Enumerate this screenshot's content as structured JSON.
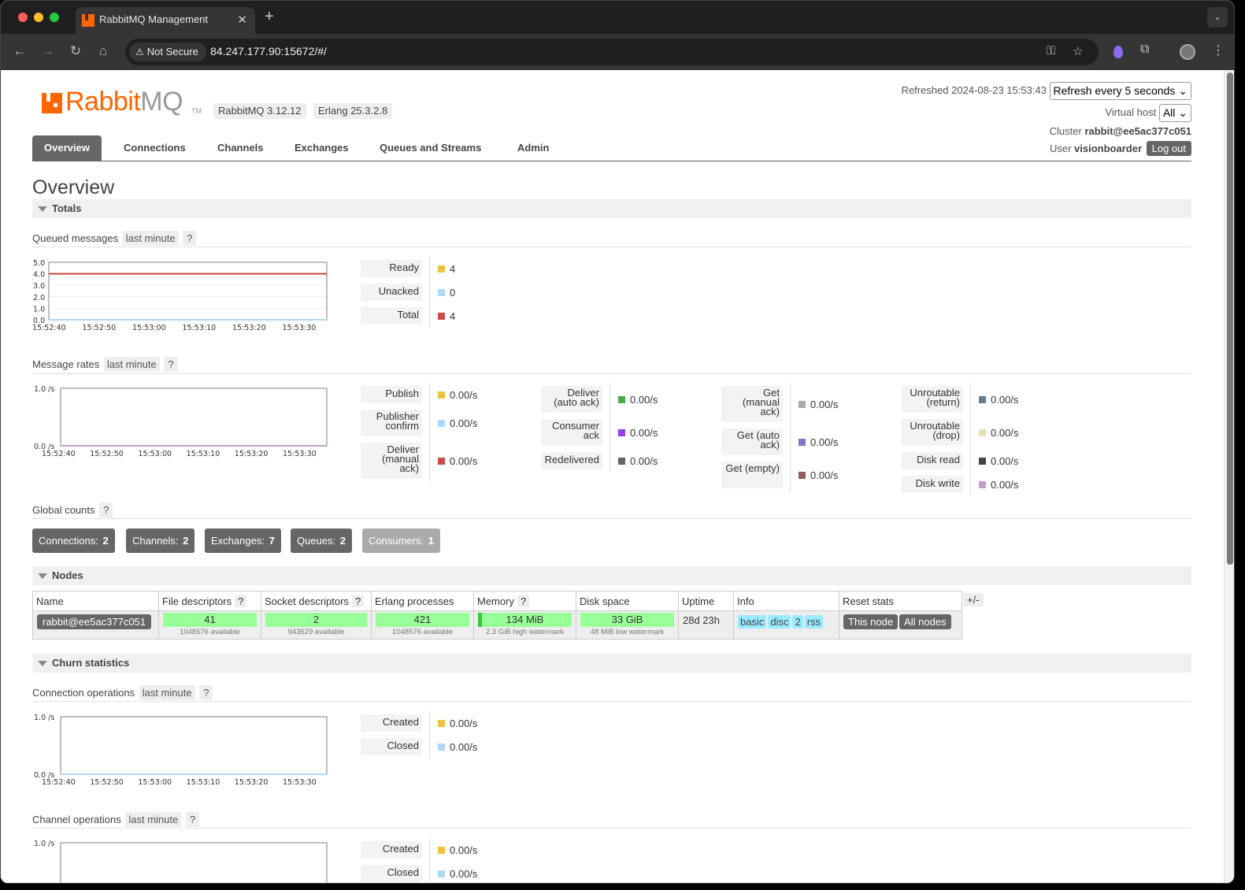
{
  "browser": {
    "tab_title": "RabbitMQ Management",
    "not_secure": "Not Secure",
    "url": "84.247.177.90:15672/#/"
  },
  "header": {
    "logo_rabbit": "Rabbit",
    "logo_mq": "MQ",
    "logo_tm": "TM",
    "rabbitmq_version": "RabbitMQ 3.12.12",
    "erlang_version": "Erlang 25.3.2.8",
    "refreshed_label": "Refreshed",
    "refreshed_time": "2024-08-23 15:53:43",
    "refresh_select": "Refresh every 5 seconds",
    "vhost_label": "Virtual host",
    "vhost_select": "All",
    "cluster_label": "Cluster",
    "cluster_name": "rabbit@ee5ac377c051",
    "user_label": "User",
    "user_name": "visionboarder",
    "logout": "Log out"
  },
  "nav": {
    "tabs": [
      "Overview",
      "Connections",
      "Channels",
      "Exchanges",
      "Queues and Streams",
      "Admin"
    ],
    "active": "Overview"
  },
  "page_title": "Overview",
  "totals": {
    "section": "Totals",
    "queued": {
      "title": "Queued messages",
      "range": "last minute",
      "help": "?",
      "legend": [
        {
          "label": "Ready",
          "value": "4",
          "color": "#edc240"
        },
        {
          "label": "Unacked",
          "value": "0",
          "color": "#afd8f8"
        },
        {
          "label": "Total",
          "value": "4",
          "color": "#cb4b4b"
        }
      ]
    },
    "rates": {
      "title": "Message rates",
      "range": "last minute",
      "help": "?",
      "col1": [
        {
          "label": "Publish",
          "value": "0.00/s",
          "color": "#edc240"
        },
        {
          "label": "Publisher confirm",
          "value": "0.00/s",
          "color": "#afd8f8"
        },
        {
          "label": "Deliver (manual ack)",
          "value": "0.00/s",
          "color": "#cb4b4b"
        }
      ],
      "col2": [
        {
          "label": "Deliver (auto ack)",
          "value": "0.00/s",
          "color": "#4da74d"
        },
        {
          "label": "Consumer ack",
          "value": "0.00/s",
          "color": "#9440ed"
        },
        {
          "label": "Redelivered",
          "value": "0.00/s",
          "color": "#666666"
        }
      ],
      "col3": [
        {
          "label": "Get (manual ack)",
          "value": "0.00/s",
          "color": "#aaaaaa"
        },
        {
          "label": "Get (auto ack)",
          "value": "0.00/s",
          "color": "#7c79c3"
        },
        {
          "label": "Get (empty)",
          "value": "0.00/s",
          "color": "#8e5e5a"
        }
      ],
      "col4": [
        {
          "label": "Unroutable (return)",
          "value": "0.00/s",
          "color": "#667d8f"
        },
        {
          "label": "Unroutable (drop)",
          "value": "0.00/s",
          "color": "#e8e0b0"
        },
        {
          "label": "Disk read",
          "value": "0.00/s",
          "color": "#444444"
        },
        {
          "label": "Disk write",
          "value": "0.00/s",
          "color": "#c39dc8"
        }
      ]
    },
    "global_counts": {
      "title": "Global counts",
      "help": "?",
      "items": [
        {
          "label": "Connections:",
          "value": "2"
        },
        {
          "label": "Channels:",
          "value": "2"
        },
        {
          "label": "Exchanges:",
          "value": "7"
        },
        {
          "label": "Queues:",
          "value": "2"
        },
        {
          "label": "Consumers:",
          "value": "1"
        }
      ]
    }
  },
  "nodes": {
    "section": "Nodes",
    "plusminus": "+/-",
    "headers": {
      "name": "Name",
      "fd": "File descriptors",
      "sd": "Socket descriptors",
      "erl": "Erlang processes",
      "mem": "Memory",
      "disk": "Disk space",
      "uptime": "Uptime",
      "info": "Info",
      "reset": "Reset stats",
      "help": "?"
    },
    "row": {
      "name": "rabbit@ee5ac377c051",
      "fd": "41",
      "fd_note": "1048576 available",
      "sd": "2",
      "sd_note": "943629 available",
      "erl": "421",
      "erl_note": "1048576 available",
      "mem": "134 MiB",
      "mem_note": "2.3 GiB high watermark",
      "disk": "33 GiB",
      "disk_note": "48 MiB low watermark",
      "uptime": "28d 23h",
      "info": [
        "basic",
        "disc",
        "2",
        "rss"
      ],
      "reset_this": "This node",
      "reset_all": "All nodes"
    }
  },
  "churn": {
    "section": "Churn statistics",
    "conn_ops": {
      "title": "Connection operations",
      "range": "last minute",
      "help": "?",
      "legend": [
        {
          "label": "Created",
          "value": "0.00/s",
          "color": "#edc240"
        },
        {
          "label": "Closed",
          "value": "0.00/s",
          "color": "#afd8f8"
        }
      ]
    },
    "chan_ops": {
      "title": "Channel operations",
      "range": "last minute",
      "help": "?",
      "legend": [
        {
          "label": "Created",
          "value": "0.00/s",
          "color": "#edc240"
        },
        {
          "label": "Closed",
          "value": "0.00/s",
          "color": "#afd8f8"
        }
      ]
    }
  },
  "chart_data": [
    {
      "type": "line",
      "x_ticks": [
        "15:52:40",
        "15:52:50",
        "15:53:00",
        "15:53:10",
        "15:53:20",
        "15:53:30"
      ],
      "y_ticks": [
        "5.0",
        "4.0",
        "3.0",
        "2.0",
        "1.0",
        "0.0"
      ],
      "ylim": [
        0,
        5
      ],
      "series": [
        {
          "name": "Ready",
          "color": "#edc240",
          "values": [
            4,
            4,
            4,
            4,
            4,
            4,
            4
          ]
        },
        {
          "name": "Unacked",
          "color": "#afd8f8",
          "values": [
            0,
            0,
            0,
            0,
            0,
            0,
            0
          ]
        },
        {
          "name": "Total",
          "color": "#cb4b4b",
          "values": [
            4,
            4,
            4,
            4,
            4,
            4,
            4
          ]
        }
      ]
    },
    {
      "type": "line",
      "x_ticks": [
        "15:52:40",
        "15:52:50",
        "15:53:00",
        "15:53:10",
        "15:53:20",
        "15:53:30"
      ],
      "y_ticks": [
        "1.0 /s",
        "0.0 /s"
      ],
      "ylim": [
        0,
        1
      ],
      "series": [
        {
          "name": "Disk write",
          "color": "#c39dc8",
          "values": [
            0,
            0,
            0,
            0,
            0,
            0,
            0
          ]
        }
      ]
    },
    {
      "type": "line",
      "x_ticks": [
        "15:52:40",
        "15:52:50",
        "15:53:00",
        "15:53:10",
        "15:53:20",
        "15:53:30"
      ],
      "y_ticks": [
        "1.0 /s",
        "0.0 /s"
      ],
      "ylim": [
        0,
        1
      ],
      "series": [
        {
          "name": "Closed",
          "color": "#afd8f8",
          "values": [
            0,
            0,
            0,
            0,
            0,
            0,
            0
          ]
        }
      ]
    },
    {
      "type": "line",
      "x_ticks": [],
      "y_ticks": [
        "1.0 /s"
      ],
      "ylim": [
        0,
        1
      ],
      "series": []
    }
  ]
}
